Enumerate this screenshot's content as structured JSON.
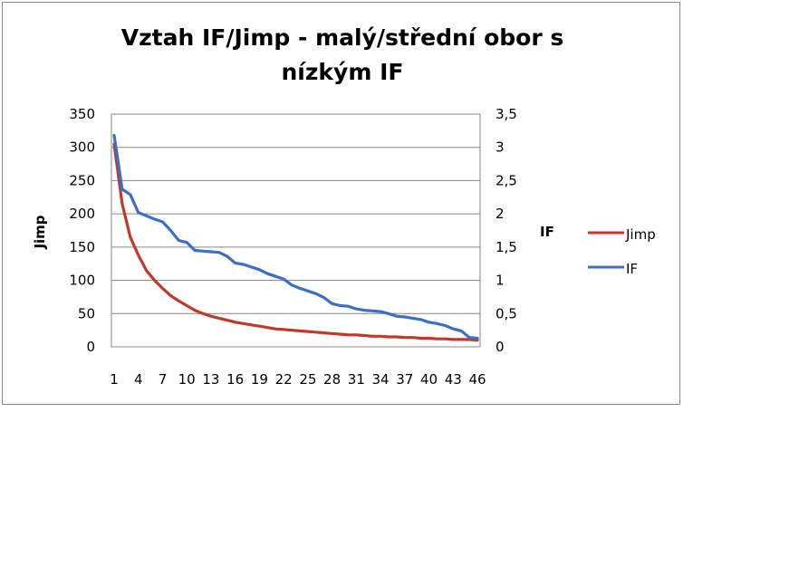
{
  "chart_data": {
    "type": "line",
    "title": "Vztah IF/Jimp - malý/střední obor s nízkým IF",
    "title_lines": [
      "Vztah IF/Jimp - malý/střední obor s",
      "nízkým IF"
    ],
    "xlabel": "",
    "ylabel": "Jimp",
    "y2label": "IF",
    "x": [
      1,
      2,
      3,
      4,
      5,
      6,
      7,
      8,
      9,
      10,
      11,
      12,
      13,
      14,
      15,
      16,
      17,
      18,
      19,
      20,
      21,
      22,
      23,
      24,
      25,
      26,
      27,
      28,
      29,
      30,
      31,
      32,
      33,
      34,
      35,
      36,
      37,
      38,
      39,
      40,
      41,
      42,
      43,
      44,
      45,
      46
    ],
    "x_tick_labels": [
      "1",
      "4",
      "7",
      "10",
      "13",
      "16",
      "19",
      "22",
      "25",
      "28",
      "31",
      "34",
      "37",
      "40",
      "43",
      "46"
    ],
    "x_tick_values": [
      1,
      4,
      7,
      10,
      13,
      16,
      19,
      22,
      25,
      28,
      31,
      34,
      37,
      40,
      43,
      46
    ],
    "ylim": [
      0,
      350
    ],
    "y_tick_labels": [
      "0",
      "50",
      "100",
      "150",
      "200",
      "250",
      "300",
      "350"
    ],
    "y2lim": [
      0,
      3.5
    ],
    "y2_tick_labels": [
      "0",
      "0,5",
      "1",
      "1,5",
      "2",
      "2,5",
      "3",
      "3,5"
    ],
    "legend_position": "right",
    "grid": "horizontal",
    "series": [
      {
        "name": "Jimp",
        "axis": "left",
        "color": "#c0392b",
        "values": [
          305,
          215,
          165,
          138,
          115,
          100,
          88,
          77,
          69,
          62,
          55,
          50,
          46,
          43,
          40,
          37,
          35,
          33,
          31,
          29,
          27,
          26,
          25,
          24,
          23,
          22,
          21,
          20,
          19,
          18,
          18,
          17,
          16,
          16,
          15,
          15,
          14,
          14,
          13,
          13,
          12,
          12,
          11,
          11,
          11,
          10
        ]
      },
      {
        "name": "IF",
        "axis": "right",
        "color": "#3b6fc4",
        "values": [
          3.18,
          2.37,
          2.29,
          2.02,
          1.97,
          1.92,
          1.88,
          1.75,
          1.6,
          1.57,
          1.45,
          1.44,
          1.43,
          1.42,
          1.36,
          1.26,
          1.24,
          1.2,
          1.16,
          1.1,
          1.06,
          1.02,
          0.93,
          0.88,
          0.84,
          0.8,
          0.74,
          0.65,
          0.62,
          0.61,
          0.57,
          0.55,
          0.54,
          0.53,
          0.5,
          0.46,
          0.45,
          0.43,
          0.41,
          0.37,
          0.35,
          0.32,
          0.27,
          0.24,
          0.14,
          0.13
        ]
      }
    ]
  }
}
